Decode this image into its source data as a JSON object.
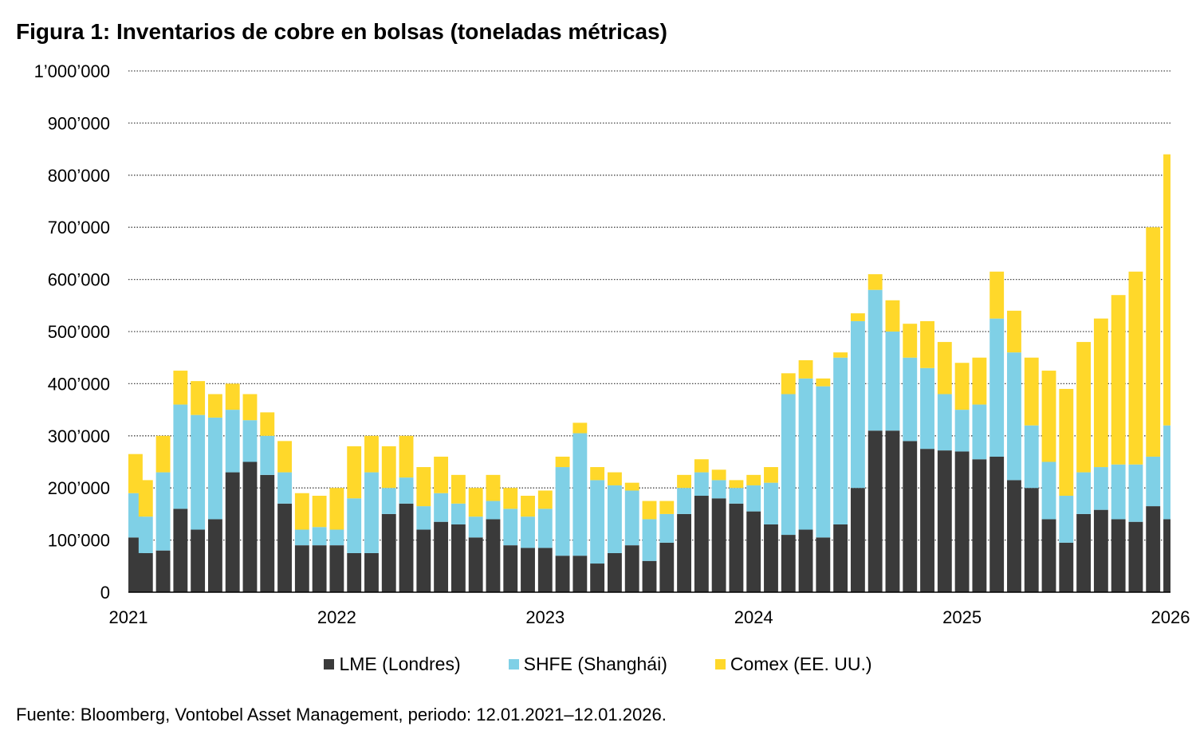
{
  "chart_data": {
    "type": "bar",
    "stacked": true,
    "title": "Figura 1: Inventarios de cobre en bolsas (toneladas métricas)",
    "xlabel": "",
    "ylabel": "",
    "ylim": [
      0,
      1000000
    ],
    "yticks": [
      0,
      100000,
      200000,
      300000,
      400000,
      500000,
      600000,
      700000,
      800000,
      900000,
      1000000
    ],
    "ytick_labels": [
      "0",
      "100’000",
      "200’000",
      "300’000",
      "400’000",
      "500’000",
      "600’000",
      "700’000",
      "800’000",
      "900’000",
      "1’000’000"
    ],
    "xtick_labels": [
      "2021",
      "2022",
      "2023",
      "2024",
      "2025",
      "2026"
    ],
    "grid": "horizontal dotted",
    "legend_position": "bottom",
    "x": [
      "2021-01",
      "2021-02",
      "2021-03",
      "2021-04",
      "2021-05",
      "2021-06",
      "2021-07",
      "2021-08",
      "2021-09",
      "2021-10",
      "2021-11",
      "2021-12",
      "2022-01",
      "2022-02",
      "2022-03",
      "2022-04",
      "2022-05",
      "2022-06",
      "2022-07",
      "2022-08",
      "2022-09",
      "2022-10",
      "2022-11",
      "2022-12",
      "2023-01",
      "2023-02",
      "2023-03",
      "2023-04",
      "2023-05",
      "2023-06",
      "2023-07",
      "2023-08",
      "2023-09",
      "2023-10",
      "2023-11",
      "2023-12",
      "2024-01",
      "2024-02",
      "2024-03",
      "2024-04",
      "2024-05",
      "2024-06",
      "2024-07",
      "2024-08",
      "2024-09",
      "2024-10",
      "2024-11",
      "2024-12",
      "2025-01",
      "2025-02",
      "2025-03",
      "2025-04",
      "2025-05",
      "2025-06",
      "2025-07",
      "2025-08",
      "2025-09",
      "2025-10",
      "2025-11",
      "2025-12",
      "2026-01"
    ],
    "series": [
      {
        "name": "LME (Londres)",
        "color": "#3a3a3a",
        "values": [
          105000,
          75000,
          80000,
          160000,
          120000,
          140000,
          230000,
          250000,
          225000,
          170000,
          90000,
          90000,
          90000,
          75000,
          75000,
          150000,
          170000,
          120000,
          135000,
          130000,
          105000,
          140000,
          90000,
          85000,
          85000,
          70000,
          70000,
          55000,
          75000,
          90000,
          60000,
          95000,
          150000,
          185000,
          180000,
          170000,
          155000,
          130000,
          110000,
          120000,
          105000,
          130000,
          200000,
          310000,
          310000,
          290000,
          275000,
          272000,
          270000,
          255000,
          260000,
          215000,
          200000,
          140000,
          95000,
          150000,
          158000,
          140000,
          135000,
          165000,
          140000
        ]
      },
      {
        "name": "SHFE (Shanghái)",
        "color": "#7fd0e6",
        "values": [
          85000,
          70000,
          150000,
          200000,
          220000,
          195000,
          120000,
          80000,
          75000,
          60000,
          30000,
          35000,
          30000,
          105000,
          155000,
          50000,
          50000,
          45000,
          55000,
          40000,
          40000,
          35000,
          70000,
          60000,
          75000,
          170000,
          235000,
          160000,
          130000,
          105000,
          80000,
          55000,
          50000,
          45000,
          35000,
          30000,
          50000,
          80000,
          270000,
          290000,
          290000,
          320000,
          320000,
          270000,
          190000,
          160000,
          155000,
          108000,
          80000,
          105000,
          265000,
          245000,
          120000,
          110000,
          90000,
          80000,
          82000,
          105000,
          110000,
          95000,
          180000
        ]
      },
      {
        "name": "Comex (EE. UU.)",
        "color": "#ffd82a",
        "values": [
          75000,
          70000,
          70000,
          65000,
          65000,
          45000,
          50000,
          50000,
          45000,
          60000,
          70000,
          60000,
          80000,
          100000,
          70000,
          80000,
          80000,
          75000,
          70000,
          55000,
          55000,
          50000,
          40000,
          40000,
          35000,
          20000,
          20000,
          25000,
          25000,
          15000,
          35000,
          25000,
          25000,
          25000,
          20000,
          15000,
          20000,
          30000,
          40000,
          35000,
          15000,
          10000,
          15000,
          30000,
          60000,
          65000,
          90000,
          100000,
          90000,
          90000,
          90000,
          80000,
          130000,
          175000,
          205000,
          250000,
          285000,
          325000,
          370000,
          440000,
          520000
        ]
      }
    ]
  },
  "source": "Fuente: Bloomberg, Vontobel Asset Management, periodo: 12.01.2021–12.01.2026."
}
